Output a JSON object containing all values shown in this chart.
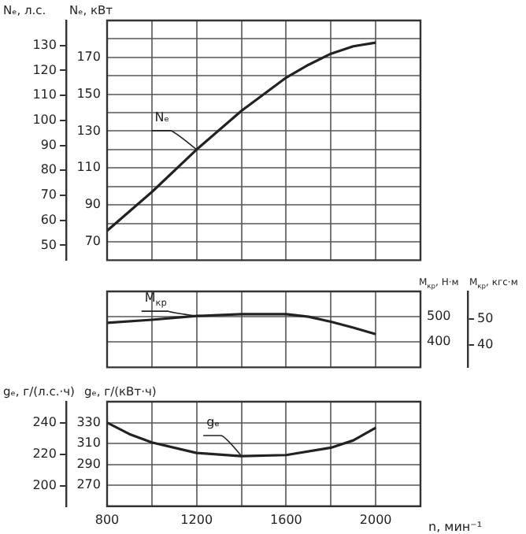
{
  "chart_data": [
    {
      "type": "line",
      "ylabel": "Nₑ, кВт",
      "y2label": "Nₑ, л.с.",
      "xlim": [
        800,
        2200
      ],
      "xticks": [
        800,
        {
          "value": 1000,
          "label": null
        },
        1200,
        {
          "value": 1400,
          "label": null
        },
        1600,
        {
          "value": 1800,
          "label": null
        },
        2000
      ],
      "ylim": [
        60,
        190
      ],
      "yticks": [
        70,
        {
          "value": 80,
          "label": null
        },
        90,
        {
          "value": 100,
          "label": null
        },
        110,
        {
          "value": 120,
          "label": null
        },
        130,
        {
          "value": 140,
          "label": null
        },
        150,
        {
          "value": 160,
          "label": null
        },
        170,
        {
          "value": 180,
          "label": null
        }
      ],
      "y2lim": [
        44,
        140
      ],
      "y2ticks": [
        50,
        60,
        70,
        80,
        90,
        100,
        110,
        120,
        130
      ],
      "tick_labels": "y",
      "grid": true,
      "legend": false,
      "marker": "none",
      "series": [
        {
          "name": "Nₑ",
          "color": "#222222",
          "x": [
            800,
            1000,
            1200,
            1400,
            1600,
            1700,
            1800,
            1900,
            2000
          ],
          "values": [
            76,
            97,
            120,
            141,
            159,
            166,
            172,
            176,
            178
          ]
        }
      ]
    },
    {
      "type": "line",
      "ylabel": "M$_{кр}$, Н·м",
      "y2label": "M$_{кр}$, кгс·м",
      "xlim": [
        800,
        2200
      ],
      "xticks": [
        800,
        {
          "value": 1000,
          "label": null
        },
        1200,
        {
          "value": 1400,
          "label": null
        },
        1600,
        {
          "value": 1800,
          "label": null
        },
        2000
      ],
      "ylim": [
        300,
        600
      ],
      "yticks": [
        400,
        500
      ],
      "y2lim": [
        31.5,
        60.5
      ],
      "y2ticks": [
        40,
        50
      ],
      "tick_labels": "y",
      "grid": true,
      "legend": false,
      "marker": "none",
      "series": [
        {
          "name": "M$_{кр}$",
          "color": "#222222",
          "x": [
            800,
            1000,
            1200,
            1400,
            1600,
            1700,
            1800,
            1900,
            2000
          ],
          "values": [
            476,
            488,
            503,
            510,
            510,
            500,
            480,
            457,
            431
          ]
        }
      ]
    },
    {
      "type": "line",
      "xlabel": "n, мин⁻¹",
      "ylabel": "gₑ, г/(кВт·ч)",
      "y2label": "gₑ, г/(л.с.·ч)",
      "xlim": [
        800,
        2200
      ],
      "xticks": [
        800,
        {
          "value": 1000,
          "label": null
        },
        1200,
        {
          "value": 1400,
          "label": null
        },
        1600,
        {
          "value": 1800,
          "label": null
        },
        2000
      ],
      "ylim": [
        250,
        350
      ],
      "yticks": [
        270,
        290,
        310,
        330
      ],
      "y2lim": [
        187,
        253.5
      ],
      "y2ticks": [
        200,
        220,
        240
      ],
      "grid": true,
      "legend": false,
      "marker": "none",
      "series": [
        {
          "name": "gₑ",
          "color": "#222222",
          "x": [
            800,
            900,
            1000,
            1200,
            1400,
            1600,
            1800,
            1900,
            2000
          ],
          "values": [
            330,
            319,
            311,
            301,
            298,
            299,
            306,
            313,
            325
          ]
        }
      ]
    }
  ]
}
